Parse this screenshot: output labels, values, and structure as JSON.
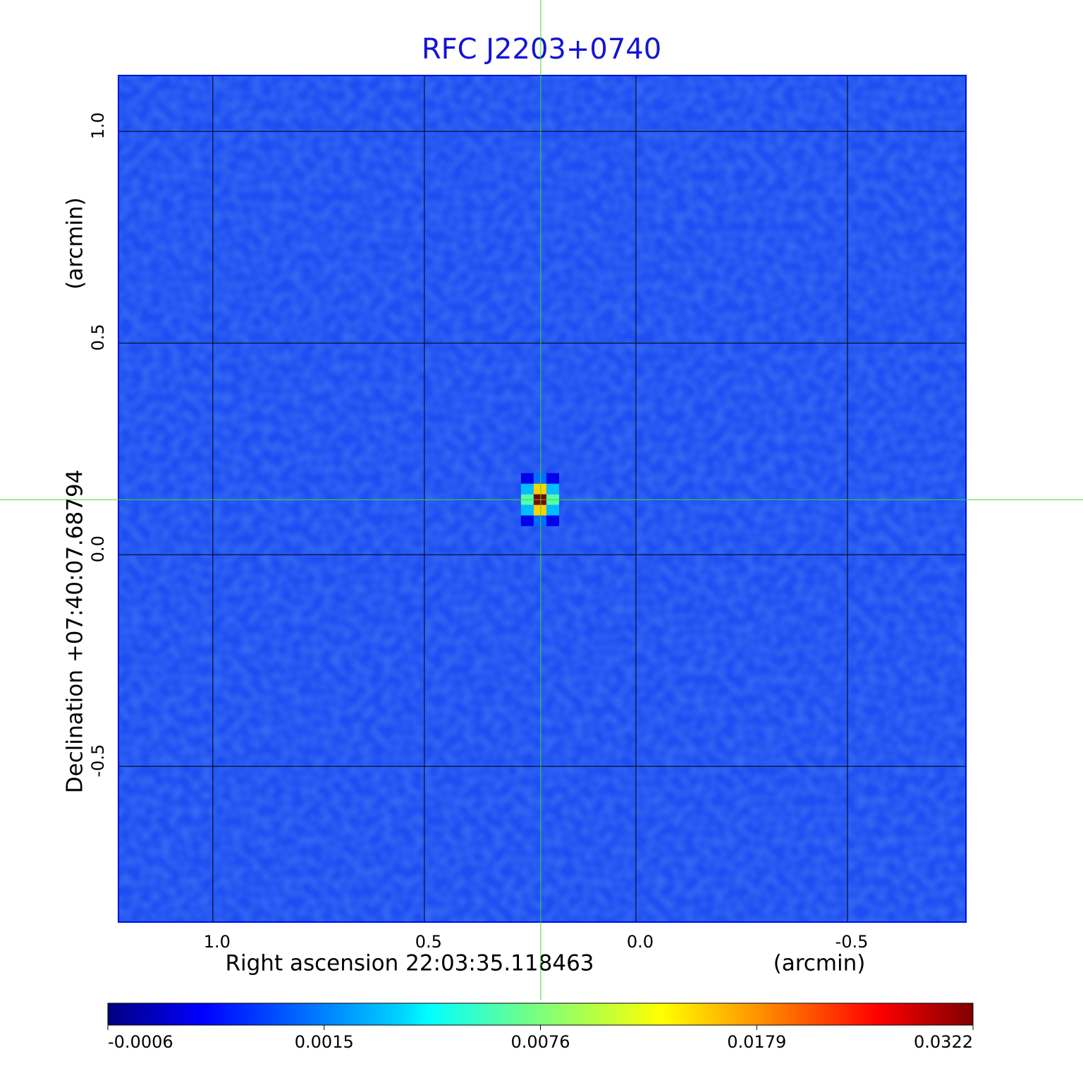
{
  "chart_data": {
    "type": "image",
    "title": "RFC J2203+0740",
    "x_label": "Right ascension  22:03:35.118463",
    "x_unit": "(arcmin)",
    "y_label": "Declination  +07:40:07.68794",
    "y_unit": "(arcmin)",
    "xlim": [
      1.223,
      -0.78
    ],
    "ylim": [
      -0.868,
      1.132
    ],
    "xticks": [
      {
        "value": 1,
        "label": "1.0"
      },
      0.5,
      {
        "value": 0,
        "label": "0.0"
      },
      -0.5
    ],
    "yticks": [
      -0.5,
      {
        "value": 0,
        "label": "0.0"
      },
      0.5,
      {
        "value": 1,
        "label": "1.0"
      }
    ],
    "grid": true,
    "peak": {
      "x": 0.225,
      "y": 0.13,
      "value": 0.0322
    },
    "crosshair": {
      "x": 0.225,
      "y": 0.13,
      "color": "#33dd33"
    },
    "colormap": "jet",
    "colorbar_ticks": [
      -0.0006,
      0.0015,
      0.0076,
      0.0179,
      0.0322
    ]
  }
}
